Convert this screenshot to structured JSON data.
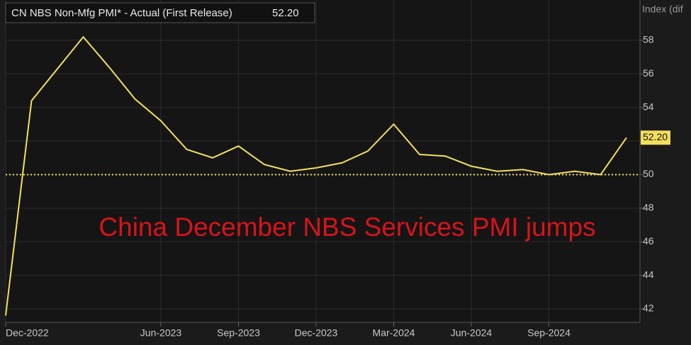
{
  "chart_data": {
    "type": "line",
    "annotation": "China December NBS Services PMI jumps",
    "y_axis_label": "Index (dif",
    "categories": [
      "Dec-2022",
      null,
      null,
      null,
      null,
      null,
      "Jun-2023",
      null,
      null,
      "Sep-2023",
      null,
      null,
      "Dec-2023",
      null,
      null,
      "Mar-2024",
      null,
      null,
      "Jun-2024",
      null,
      null,
      "Sep-2024",
      null,
      null,
      null
    ],
    "series": [
      {
        "name": "CN NBS Non-Mfg PMI* - Actual (First Release)",
        "color": "#f3df5e",
        "values": [
          41.6,
          54.4,
          56.3,
          58.2,
          56.4,
          54.5,
          53.2,
          51.5,
          51.0,
          51.7,
          50.6,
          50.2,
          50.4,
          50.7,
          51.4,
          53.0,
          51.2,
          51.1,
          50.5,
          50.2,
          50.3,
          50.0,
          50.2,
          50.0,
          52.2
        ],
        "last_value_label": "52.20"
      }
    ],
    "reference_line": 50,
    "ylim": [
      41.2,
      60.4
    ],
    "yticks": [
      42,
      44,
      46,
      48,
      50,
      52,
      54,
      56,
      58
    ],
    "grid": true
  }
}
